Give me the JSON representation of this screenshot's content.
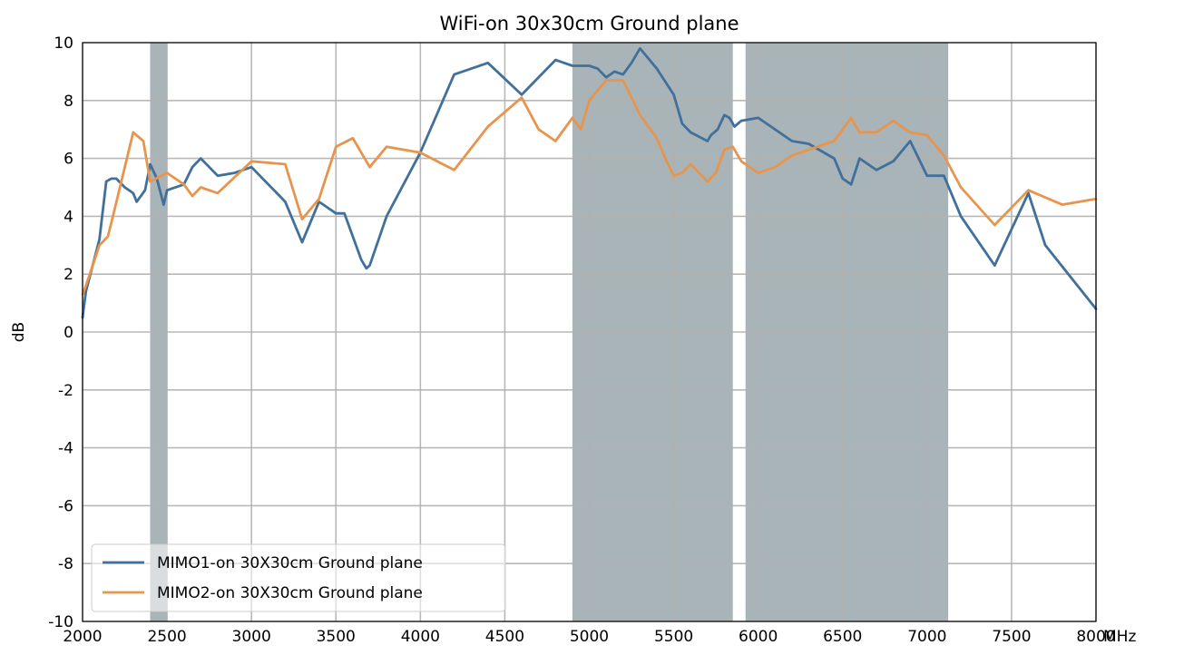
{
  "chart_data": {
    "type": "line",
    "title": "WiFi-on 30x30cm Ground plane",
    "xlabel": "MHz",
    "ylabel": "dB",
    "xlim": [
      2000,
      8000
    ],
    "ylim": [
      -10,
      10
    ],
    "grid": true,
    "legend_position": "lower-left",
    "x_ticks": [
      "2000",
      "2500",
      "3000",
      "3500",
      "4000",
      "4500",
      "5000",
      "5500",
      "6000",
      "6500",
      "7000",
      "7500",
      "8000"
    ],
    "y_ticks": [
      "10",
      "8",
      "6",
      "4",
      "2",
      "0",
      "-2",
      "-4",
      "-6",
      "-8",
      "-10"
    ],
    "shaded_bands": [
      [
        2400,
        2500
      ],
      [
        4900,
        5850
      ],
      [
        5925,
        7125
      ]
    ],
    "band_color": "#a9b4b8",
    "series": [
      {
        "name": "MIMO1-on 30X30cm Ground plane",
        "color": "#41709b",
        "points": [
          [
            2000,
            0.5
          ],
          [
            2020,
            1.4
          ],
          [
            2100,
            3.2
          ],
          [
            2140,
            5.2
          ],
          [
            2170,
            5.3
          ],
          [
            2200,
            5.3
          ],
          [
            2250,
            5.0
          ],
          [
            2300,
            4.8
          ],
          [
            2320,
            4.5
          ],
          [
            2370,
            4.9
          ],
          [
            2400,
            5.8
          ],
          [
            2440,
            5.3
          ],
          [
            2480,
            4.4
          ],
          [
            2500,
            4.9
          ],
          [
            2600,
            5.1
          ],
          [
            2650,
            5.7
          ],
          [
            2700,
            6.0
          ],
          [
            2800,
            5.4
          ],
          [
            2900,
            5.5
          ],
          [
            3000,
            5.7
          ],
          [
            3100,
            5.1
          ],
          [
            3200,
            4.5
          ],
          [
            3300,
            3.1
          ],
          [
            3400,
            4.5
          ],
          [
            3500,
            4.1
          ],
          [
            3550,
            4.1
          ],
          [
            3650,
            2.5
          ],
          [
            3680,
            2.2
          ],
          [
            3700,
            2.3
          ],
          [
            3800,
            4.0
          ],
          [
            4000,
            6.2
          ],
          [
            4200,
            8.9
          ],
          [
            4400,
            9.3
          ],
          [
            4600,
            8.2
          ],
          [
            4800,
            9.4
          ],
          [
            4900,
            9.2
          ],
          [
            5000,
            9.2
          ],
          [
            5050,
            9.1
          ],
          [
            5100,
            8.8
          ],
          [
            5150,
            9.0
          ],
          [
            5200,
            8.9
          ],
          [
            5250,
            9.3
          ],
          [
            5300,
            9.8
          ],
          [
            5400,
            9.1
          ],
          [
            5500,
            8.2
          ],
          [
            5550,
            7.2
          ],
          [
            5600,
            6.9
          ],
          [
            5700,
            6.6
          ],
          [
            5720,
            6.8
          ],
          [
            5760,
            7.0
          ],
          [
            5800,
            7.5
          ],
          [
            5830,
            7.4
          ],
          [
            5860,
            7.1
          ],
          [
            5900,
            7.3
          ],
          [
            6000,
            7.4
          ],
          [
            6200,
            6.6
          ],
          [
            6300,
            6.5
          ],
          [
            6450,
            6.0
          ],
          [
            6500,
            5.3
          ],
          [
            6550,
            5.1
          ],
          [
            6600,
            6.0
          ],
          [
            6700,
            5.6
          ],
          [
            6800,
            5.9
          ],
          [
            6900,
            6.6
          ],
          [
            7000,
            5.4
          ],
          [
            7100,
            5.4
          ],
          [
            7200,
            4.0
          ],
          [
            7400,
            2.3
          ],
          [
            7600,
            4.8
          ],
          [
            7700,
            3.0
          ],
          [
            8000,
            0.8
          ]
        ]
      },
      {
        "name": "MIMO2-on 30X30cm Ground plane",
        "color": "#e7954d",
        "points": [
          [
            2000,
            1.3
          ],
          [
            2020,
            1.6
          ],
          [
            2100,
            3.0
          ],
          [
            2150,
            3.3
          ],
          [
            2180,
            4.0
          ],
          [
            2300,
            6.9
          ],
          [
            2360,
            6.6
          ],
          [
            2400,
            5.2
          ],
          [
            2500,
            5.5
          ],
          [
            2600,
            5.1
          ],
          [
            2650,
            4.7
          ],
          [
            2700,
            5.0
          ],
          [
            2800,
            4.8
          ],
          [
            3000,
            5.9
          ],
          [
            3200,
            5.8
          ],
          [
            3300,
            3.9
          ],
          [
            3400,
            4.6
          ],
          [
            3500,
            6.4
          ],
          [
            3600,
            6.7
          ],
          [
            3700,
            5.7
          ],
          [
            3800,
            6.4
          ],
          [
            4000,
            6.2
          ],
          [
            4200,
            5.6
          ],
          [
            4400,
            7.1
          ],
          [
            4600,
            8.1
          ],
          [
            4700,
            7.0
          ],
          [
            4800,
            6.6
          ],
          [
            4900,
            7.4
          ],
          [
            4950,
            7.0
          ],
          [
            5000,
            8.0
          ],
          [
            5100,
            8.7
          ],
          [
            5200,
            8.7
          ],
          [
            5300,
            7.5
          ],
          [
            5400,
            6.7
          ],
          [
            5450,
            6.0
          ],
          [
            5500,
            5.4
          ],
          [
            5550,
            5.5
          ],
          [
            5600,
            5.8
          ],
          [
            5650,
            5.5
          ],
          [
            5700,
            5.2
          ],
          [
            5750,
            5.5
          ],
          [
            5800,
            6.3
          ],
          [
            5850,
            6.4
          ],
          [
            5900,
            5.9
          ],
          [
            6000,
            5.5
          ],
          [
            6100,
            5.7
          ],
          [
            6200,
            6.1
          ],
          [
            6400,
            6.5
          ],
          [
            6450,
            6.6
          ],
          [
            6500,
            7.0
          ],
          [
            6550,
            7.4
          ],
          [
            6600,
            6.9
          ],
          [
            6700,
            6.9
          ],
          [
            6800,
            7.3
          ],
          [
            6900,
            6.9
          ],
          [
            7000,
            6.8
          ],
          [
            7100,
            6.1
          ],
          [
            7200,
            5.0
          ],
          [
            7400,
            3.7
          ],
          [
            7600,
            4.9
          ],
          [
            7800,
            4.4
          ],
          [
            8000,
            4.6
          ]
        ]
      }
    ]
  }
}
